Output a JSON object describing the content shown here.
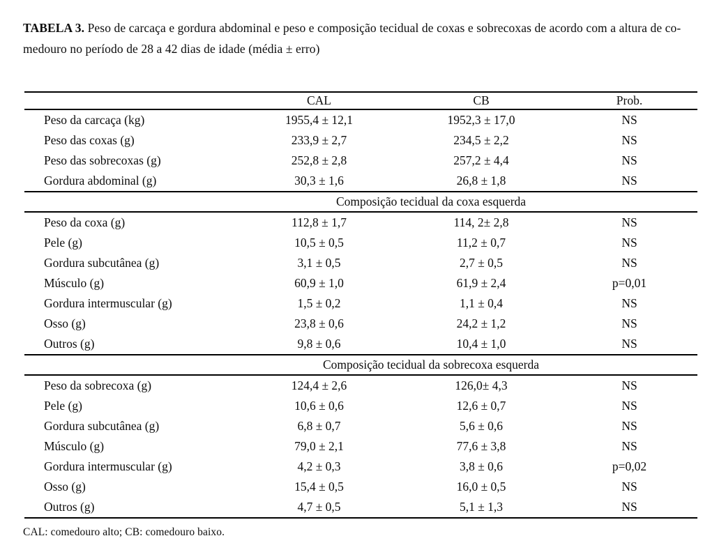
{
  "caption": {
    "bold": "TABELA 3.",
    "line1": "Peso de carcaça e gordura abdominal e peso e composição tecidual de coxas e sobrecoxas de acordo com a altura de co-",
    "line2": "medouro no período de 28 a 42 dias de idade (média ± erro)"
  },
  "table": {
    "type": "table",
    "columns": [
      "",
      "CAL",
      "CB",
      "Prob."
    ],
    "sections": [
      {
        "header": null,
        "rows": [
          [
            "Peso da carcaça (kg)",
            "1955,4 ± 12,1",
            "1952,3 ± 17,0",
            "NS"
          ],
          [
            "Peso das coxas (g)",
            "233,9 ± 2,7",
            "234,5 ± 2,2",
            "NS"
          ],
          [
            "Peso das sobrecoxas (g)",
            "252,8 ± 2,8",
            "257,2 ± 4,4",
            "NS"
          ],
          [
            "Gordura abdominal (g)",
            "30,3 ± 1,6",
            "26,8 ± 1,8",
            "NS"
          ]
        ]
      },
      {
        "header": "Composição tecidual da coxa esquerda",
        "rows": [
          [
            "Peso da coxa (g)",
            "112,8 ± 1,7",
            "114, 2± 2,8",
            "NS"
          ],
          [
            "Pele (g)",
            "10,5 ± 0,5",
            "11,2 ± 0,7",
            "NS"
          ],
          [
            "Gordura subcutânea (g)",
            "3,1 ± 0,5",
            "2,7 ± 0,5",
            "NS"
          ],
          [
            "Músculo (g)",
            "60,9 ± 1,0",
            "61,9 ± 2,4",
            "p=0,01"
          ],
          [
            "Gordura intermuscular (g)",
            "1,5 ± 0,2",
            "1,1 ± 0,4",
            "NS"
          ],
          [
            "Osso (g)",
            "23,8 ± 0,6",
            "24,2 ± 1,2",
            "NS"
          ],
          [
            "Outros (g)",
            "9,8 ± 0,6",
            "10,4 ± 1,0",
            "NS"
          ]
        ]
      },
      {
        "header": "Composição tecidual da sobrecoxa esquerda",
        "rows": [
          [
            "Peso da sobrecoxa (g)",
            "124,4 ± 2,6",
            "126,0± 4,3",
            "NS"
          ],
          [
            "Pele (g)",
            "10,6 ± 0,6",
            "12,6 ± 0,7",
            "NS"
          ],
          [
            "Gordura subcutânea (g)",
            "6,8 ± 0,7",
            "5,6 ± 0,6",
            "NS"
          ],
          [
            "Músculo (g)",
            "79,0 ± 2,1",
            "77,6 ± 3,8",
            "NS"
          ],
          [
            "Gordura intermuscular (g)",
            "4,2 ± 0,3",
            "3,8 ± 0,6",
            "p=0,02"
          ],
          [
            "Osso (g)",
            "15,4 ± 0,5",
            "16,0 ± 0,5",
            "NS"
          ],
          [
            "Outros (g)",
            "4,7 ± 0,5",
            "5,1 ± 1,3",
            "NS"
          ]
        ]
      }
    ]
  },
  "footnote": "CAL: comedouro alto; CB: comedouro baixo."
}
